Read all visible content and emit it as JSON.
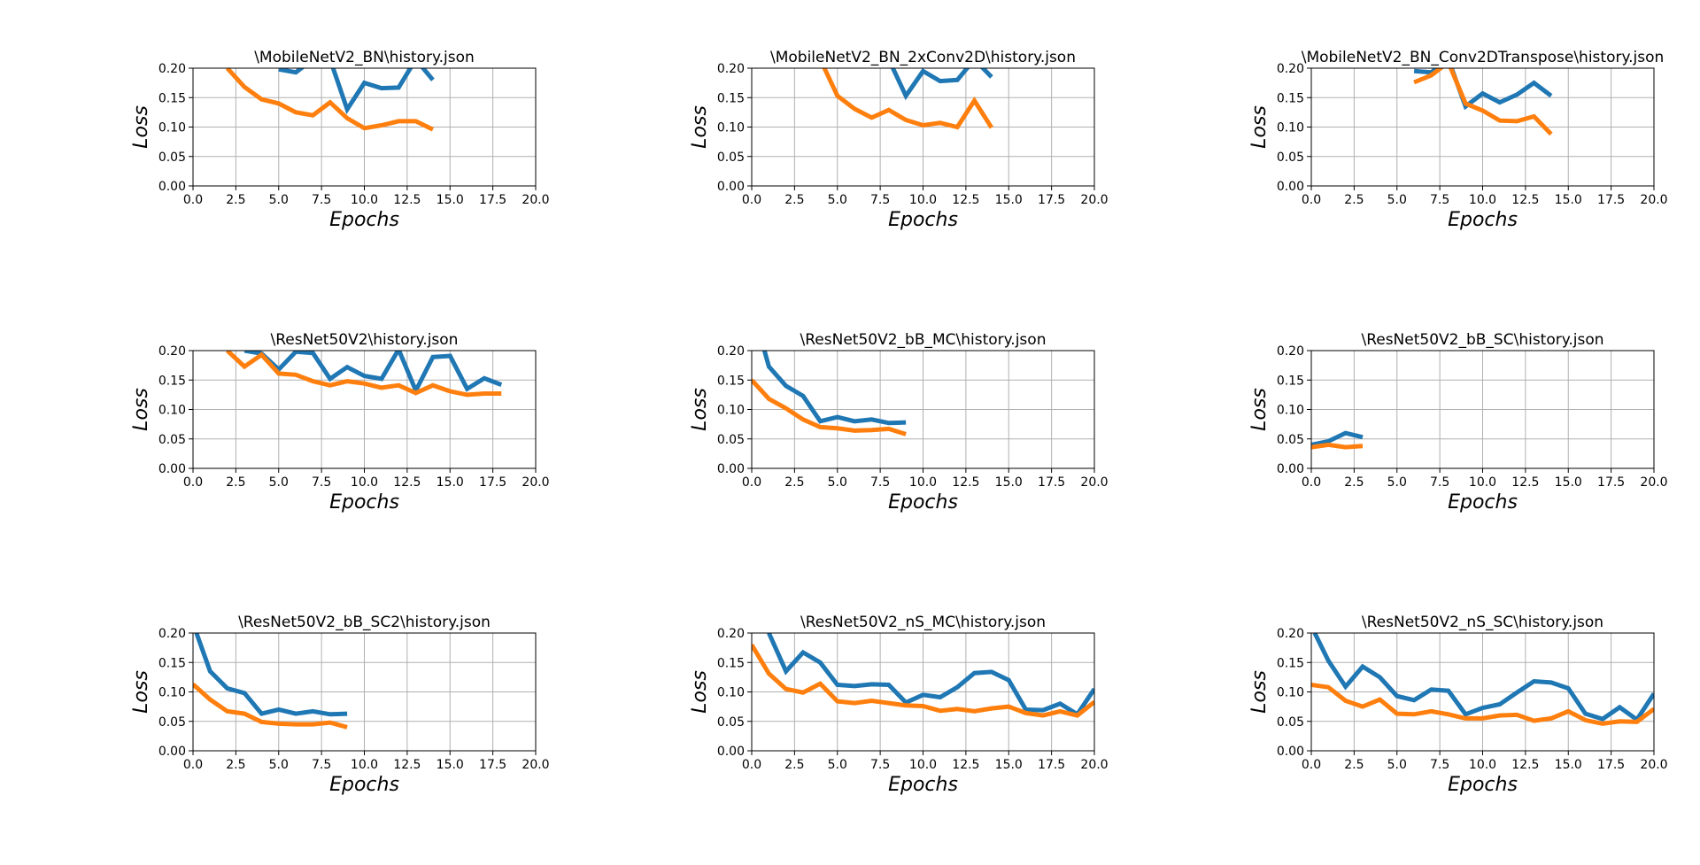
{
  "colors": {
    "series_1": "#1f77b4",
    "series_2": "#ff7f0e",
    "grid": "#b0b0b0",
    "axes": "#000000"
  },
  "chart_data": [
    {
      "type": "line",
      "title": "\\MobileNetV2_BN\\history.json",
      "xlabel": "Epochs",
      "ylabel": "Loss",
      "xlim": [
        0,
        20
      ],
      "ylim": [
        0,
        0.2
      ],
      "xticks": [
        "0.0",
        "2.5",
        "5.0",
        "7.5",
        "10.0",
        "12.5",
        "15.0",
        "17.5",
        "20.0"
      ],
      "yticks": [
        "0.00",
        "0.05",
        "0.10",
        "0.15",
        "0.20"
      ],
      "grid": true,
      "series": [
        {
          "x": [
            5,
            6,
            7,
            8,
            9,
            10,
            11,
            12,
            13,
            14
          ],
          "values": [
            0.198,
            0.193,
            0.215,
            0.215,
            0.13,
            0.175,
            0.166,
            0.167,
            0.215,
            0.18
          ]
        },
        {
          "x": [
            2,
            3,
            4,
            5,
            6,
            7,
            8,
            9,
            10,
            11,
            12,
            13,
            14
          ],
          "values": [
            0.2,
            0.168,
            0.147,
            0.14,
            0.125,
            0.12,
            0.142,
            0.115,
            0.098,
            0.103,
            0.11,
            0.11,
            0.096
          ]
        }
      ]
    },
    {
      "type": "line",
      "title": "\\MobileNetV2_BN_2xConv2D\\history.json",
      "xlabel": "Epochs",
      "ylabel": "Loss",
      "xlim": [
        0,
        20
      ],
      "ylim": [
        0,
        0.2
      ],
      "xticks": [
        "0.0",
        "2.5",
        "5.0",
        "7.5",
        "10.0",
        "12.5",
        "15.0",
        "17.5",
        "20.0"
      ],
      "yticks": [
        "0.00",
        "0.05",
        "0.10",
        "0.15",
        "0.20"
      ],
      "grid": true,
      "series": [
        {
          "x": [
            8,
            9,
            10,
            11,
            12,
            13,
            14
          ],
          "values": [
            0.215,
            0.153,
            0.195,
            0.178,
            0.18,
            0.215,
            0.185
          ]
        },
        {
          "x": [
            4,
            5,
            6,
            7,
            8,
            9,
            10,
            11,
            12,
            13,
            14
          ],
          "values": [
            0.215,
            0.153,
            0.131,
            0.116,
            0.129,
            0.112,
            0.103,
            0.107,
            0.1,
            0.145,
            0.099
          ]
        }
      ]
    },
    {
      "type": "line",
      "title": "\\MobileNetV2_BN_Conv2DTranspose\\history.json",
      "xlabel": "Epochs",
      "ylabel": "Loss",
      "xlim": [
        0,
        20
      ],
      "ylim": [
        0,
        0.2
      ],
      "xticks": [
        "0.0",
        "2.5",
        "5.0",
        "7.5",
        "10.0",
        "12.5",
        "15.0",
        "17.5",
        "20.0"
      ],
      "yticks": [
        "0.00",
        "0.05",
        "0.10",
        "0.15",
        "0.20"
      ],
      "grid": true,
      "series": [
        {
          "x": [
            6,
            7,
            8,
            9,
            10,
            11,
            12,
            13,
            14
          ],
          "values": [
            0.195,
            0.193,
            0.215,
            0.135,
            0.157,
            0.142,
            0.155,
            0.175,
            0.153
          ]
        },
        {
          "x": [
            6,
            7,
            8,
            9,
            10,
            11,
            12,
            13,
            14
          ],
          "values": [
            0.176,
            0.188,
            0.21,
            0.14,
            0.128,
            0.111,
            0.11,
            0.118,
            0.088
          ]
        }
      ]
    },
    {
      "type": "line",
      "title": "\\ResNet50V2\\history.json",
      "xlabel": "Epochs",
      "ylabel": "Loss",
      "xlim": [
        0,
        20
      ],
      "ylim": [
        0,
        0.2
      ],
      "xticks": [
        "0.0",
        "2.5",
        "5.0",
        "7.5",
        "10.0",
        "12.5",
        "15.0",
        "17.5",
        "20.0"
      ],
      "yticks": [
        "0.00",
        "0.05",
        "0.10",
        "0.15",
        "0.20"
      ],
      "grid": true,
      "series": [
        {
          "x": [
            3,
            4,
            5,
            6,
            7,
            8,
            9,
            10,
            11,
            12,
            13,
            14,
            15,
            16,
            17,
            18
          ],
          "values": [
            0.2,
            0.195,
            0.168,
            0.198,
            0.196,
            0.152,
            0.172,
            0.157,
            0.152,
            0.202,
            0.132,
            0.189,
            0.191,
            0.135,
            0.153,
            0.142
          ]
        },
        {
          "x": [
            2,
            3,
            4,
            5,
            6,
            7,
            8,
            9,
            10,
            11,
            12,
            13,
            14,
            15,
            16,
            17,
            18
          ],
          "values": [
            0.2,
            0.173,
            0.193,
            0.161,
            0.159,
            0.148,
            0.141,
            0.148,
            0.144,
            0.137,
            0.141,
            0.128,
            0.141,
            0.131,
            0.125,
            0.127,
            0.127
          ]
        }
      ]
    },
    {
      "type": "line",
      "title": "\\ResNet50V2_bB_MC\\history.json",
      "xlabel": "Epochs",
      "ylabel": "Loss",
      "xlim": [
        0,
        20
      ],
      "ylim": [
        0,
        0.2
      ],
      "xticks": [
        "0.0",
        "2.5",
        "5.0",
        "7.5",
        "10.0",
        "12.5",
        "15.0",
        "17.5",
        "20.0"
      ],
      "yticks": [
        "0.00",
        "0.05",
        "0.10",
        "0.15",
        "0.20"
      ],
      "grid": true,
      "series": [
        {
          "x": [
            0.6,
            1,
            2,
            3,
            4,
            5,
            6,
            7,
            8,
            9
          ],
          "values": [
            0.215,
            0.173,
            0.14,
            0.123,
            0.08,
            0.087,
            0.08,
            0.083,
            0.077,
            0.078
          ]
        },
        {
          "x": [
            0,
            1,
            2,
            3,
            4,
            5,
            6,
            7,
            8,
            9
          ],
          "values": [
            0.15,
            0.118,
            0.102,
            0.083,
            0.07,
            0.068,
            0.064,
            0.065,
            0.067,
            0.058
          ]
        }
      ]
    },
    {
      "type": "line",
      "title": "\\ResNet50V2_bB_SC\\history.json",
      "xlabel": "Epochs",
      "ylabel": "Loss",
      "xlim": [
        0,
        20
      ],
      "ylim": [
        0,
        0.2
      ],
      "xticks": [
        "0.0",
        "2.5",
        "5.0",
        "7.5",
        "10.0",
        "12.5",
        "15.0",
        "17.5",
        "20.0"
      ],
      "yticks": [
        "0.00",
        "0.05",
        "0.10",
        "0.15",
        "0.20"
      ],
      "grid": true,
      "series": [
        {
          "x": [
            0,
            1,
            2,
            3
          ],
          "values": [
            0.04,
            0.046,
            0.06,
            0.053
          ]
        },
        {
          "x": [
            0,
            1,
            2,
            3
          ],
          "values": [
            0.036,
            0.04,
            0.036,
            0.038
          ]
        }
      ]
    },
    {
      "type": "line",
      "title": "\\ResNet50V2_bB_SC2\\history.json",
      "xlabel": "Epochs",
      "ylabel": "Loss",
      "xlim": [
        0,
        20
      ],
      "ylim": [
        0,
        0.2
      ],
      "xticks": [
        "0.0",
        "2.5",
        "5.0",
        "7.5",
        "10.0",
        "12.5",
        "15.0",
        "17.5",
        "20.0"
      ],
      "yticks": [
        "0.00",
        "0.05",
        "0.10",
        "0.15",
        "0.20"
      ],
      "grid": true,
      "series": [
        {
          "x": [
            0.2,
            1,
            2,
            3,
            4,
            5,
            6,
            7,
            8,
            9
          ],
          "values": [
            0.2,
            0.135,
            0.106,
            0.098,
            0.063,
            0.07,
            0.063,
            0.067,
            0.062,
            0.063
          ]
        },
        {
          "x": [
            0,
            1,
            2,
            3,
            4,
            5,
            6,
            7,
            8,
            9
          ],
          "values": [
            0.113,
            0.087,
            0.067,
            0.063,
            0.049,
            0.046,
            0.045,
            0.045,
            0.048,
            0.04
          ]
        }
      ]
    },
    {
      "type": "line",
      "title": "\\ResNet50V2_nS_MC\\history.json",
      "xlabel": "Epochs",
      "ylabel": "Loss",
      "xlim": [
        0,
        20
      ],
      "ylim": [
        0,
        0.2
      ],
      "xticks": [
        "0.0",
        "2.5",
        "5.0",
        "7.5",
        "10.0",
        "12.5",
        "15.0",
        "17.5",
        "20.0"
      ],
      "yticks": [
        "0.00",
        "0.05",
        "0.10",
        "0.15",
        "0.20"
      ],
      "grid": true,
      "series": [
        {
          "x": [
            1,
            2,
            3,
            4,
            5,
            6,
            7,
            8,
            9,
            10,
            11,
            12,
            13,
            14,
            15,
            16,
            17,
            18,
            19,
            20
          ],
          "values": [
            0.2,
            0.135,
            0.167,
            0.15,
            0.112,
            0.11,
            0.113,
            0.112,
            0.082,
            0.095,
            0.091,
            0.108,
            0.132,
            0.134,
            0.12,
            0.07,
            0.069,
            0.08,
            0.062,
            0.105
          ]
        },
        {
          "x": [
            0,
            1,
            2,
            3,
            4,
            5,
            6,
            7,
            8,
            9,
            10,
            11,
            12,
            13,
            14,
            15,
            16,
            17,
            18,
            19,
            20
          ],
          "values": [
            0.18,
            0.131,
            0.105,
            0.099,
            0.114,
            0.084,
            0.081,
            0.085,
            0.081,
            0.077,
            0.076,
            0.068,
            0.071,
            0.067,
            0.072,
            0.075,
            0.064,
            0.06,
            0.067,
            0.06,
            0.083
          ]
        }
      ]
    },
    {
      "type": "line",
      "title": "\\ResNet50V2_nS_SC\\history.json",
      "xlabel": "Epochs",
      "ylabel": "Loss",
      "xlim": [
        0,
        20
      ],
      "ylim": [
        0,
        0.2
      ],
      "xticks": [
        "0.0",
        "2.5",
        "5.0",
        "7.5",
        "10.0",
        "12.5",
        "15.0",
        "17.5",
        "20.0"
      ],
      "yticks": [
        "0.00",
        "0.05",
        "0.10",
        "0.15",
        "0.20"
      ],
      "grid": true,
      "series": [
        {
          "x": [
            0.2,
            1,
            2,
            3,
            4,
            5,
            6,
            7,
            8,
            9,
            10,
            11,
            12,
            13,
            14,
            15,
            16,
            17,
            18,
            19,
            20
          ],
          "values": [
            0.2,
            0.153,
            0.109,
            0.143,
            0.125,
            0.093,
            0.086,
            0.104,
            0.102,
            0.062,
            0.073,
            0.079,
            0.099,
            0.118,
            0.116,
            0.106,
            0.063,
            0.054,
            0.074,
            0.053,
            0.097
          ]
        },
        {
          "x": [
            0,
            1,
            2,
            3,
            4,
            5,
            6,
            7,
            8,
            9,
            10,
            11,
            12,
            13,
            14,
            15,
            16,
            17,
            18,
            19,
            20
          ],
          "values": [
            0.112,
            0.108,
            0.085,
            0.075,
            0.087,
            0.063,
            0.062,
            0.067,
            0.062,
            0.055,
            0.055,
            0.06,
            0.061,
            0.051,
            0.055,
            0.067,
            0.052,
            0.046,
            0.05,
            0.049,
            0.071
          ]
        }
      ]
    }
  ]
}
